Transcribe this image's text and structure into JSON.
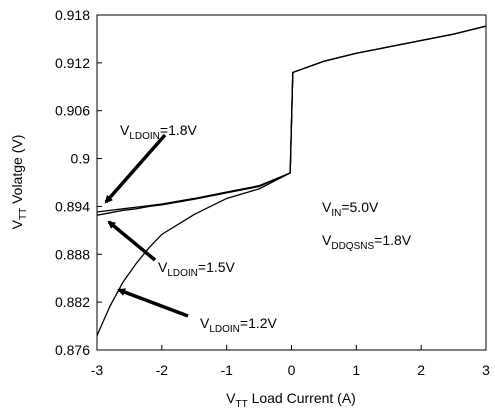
{
  "chart_data": {
    "type": "line",
    "x": [
      -3,
      -2.8,
      -2.6,
      -2.4,
      -2.2,
      -2,
      -1.5,
      -1,
      -0.5,
      -0.02,
      0.02,
      0.5,
      1,
      1.5,
      2,
      2.5,
      3
    ],
    "series": [
      {
        "color": "#000000",
        "values": [
          0.8933,
          0.8935,
          0.8937,
          0.8939,
          0.8941,
          0.8943,
          0.895,
          0.8958,
          0.8966,
          0.8982,
          0.9108,
          0.9122,
          0.9132,
          0.914,
          0.9148,
          0.9156,
          0.9166
        ]
      },
      {
        "color": "#000000",
        "values": [
          0.8929,
          0.8932,
          0.8935,
          0.8937,
          0.894,
          0.8942,
          0.8949,
          0.8957,
          0.8965,
          0.8982,
          0.9108,
          0.9122,
          0.9132,
          0.914,
          0.9148,
          0.9156,
          0.9166
        ]
      },
      {
        "color": "#000000",
        "values": [
          0.8778,
          0.8815,
          0.8845,
          0.8868,
          0.8888,
          0.8905,
          0.893,
          0.895,
          0.8962,
          0.8982,
          0.9108,
          0.9122,
          0.9132,
          0.914,
          0.9148,
          0.9156,
          0.9166
        ]
      }
    ],
    "xlim": [
      -3,
      3
    ],
    "xticks": [
      -3,
      -2,
      -1,
      0,
      1,
      2,
      3
    ],
    "ylim": [
      0.876,
      0.918
    ],
    "yticks": [
      0.876,
      0.882,
      0.888,
      0.894,
      0.9,
      0.906,
      0.912,
      0.918
    ],
    "grid": false,
    "xlabel": {
      "main": "V",
      "sub": "TT",
      "rest": " Load Current (A)"
    },
    "ylabel": {
      "main": "V",
      "sub": "TT",
      "rest": " Volatge (V)"
    },
    "annotations": [
      {
        "main": "V",
        "sub": "LDOIN",
        "rest": "=1.8V"
      },
      {
        "main": "V",
        "sub": "LDOIN",
        "rest": "=1.5V"
      },
      {
        "main": "V",
        "sub": "LDOIN",
        "rest": "=1.2V"
      },
      {
        "main": "V",
        "sub": "IN",
        "rest": "=5.0V"
      },
      {
        "main": "V",
        "sub": "DDQSNS",
        "rest": "=1.8V"
      }
    ]
  }
}
